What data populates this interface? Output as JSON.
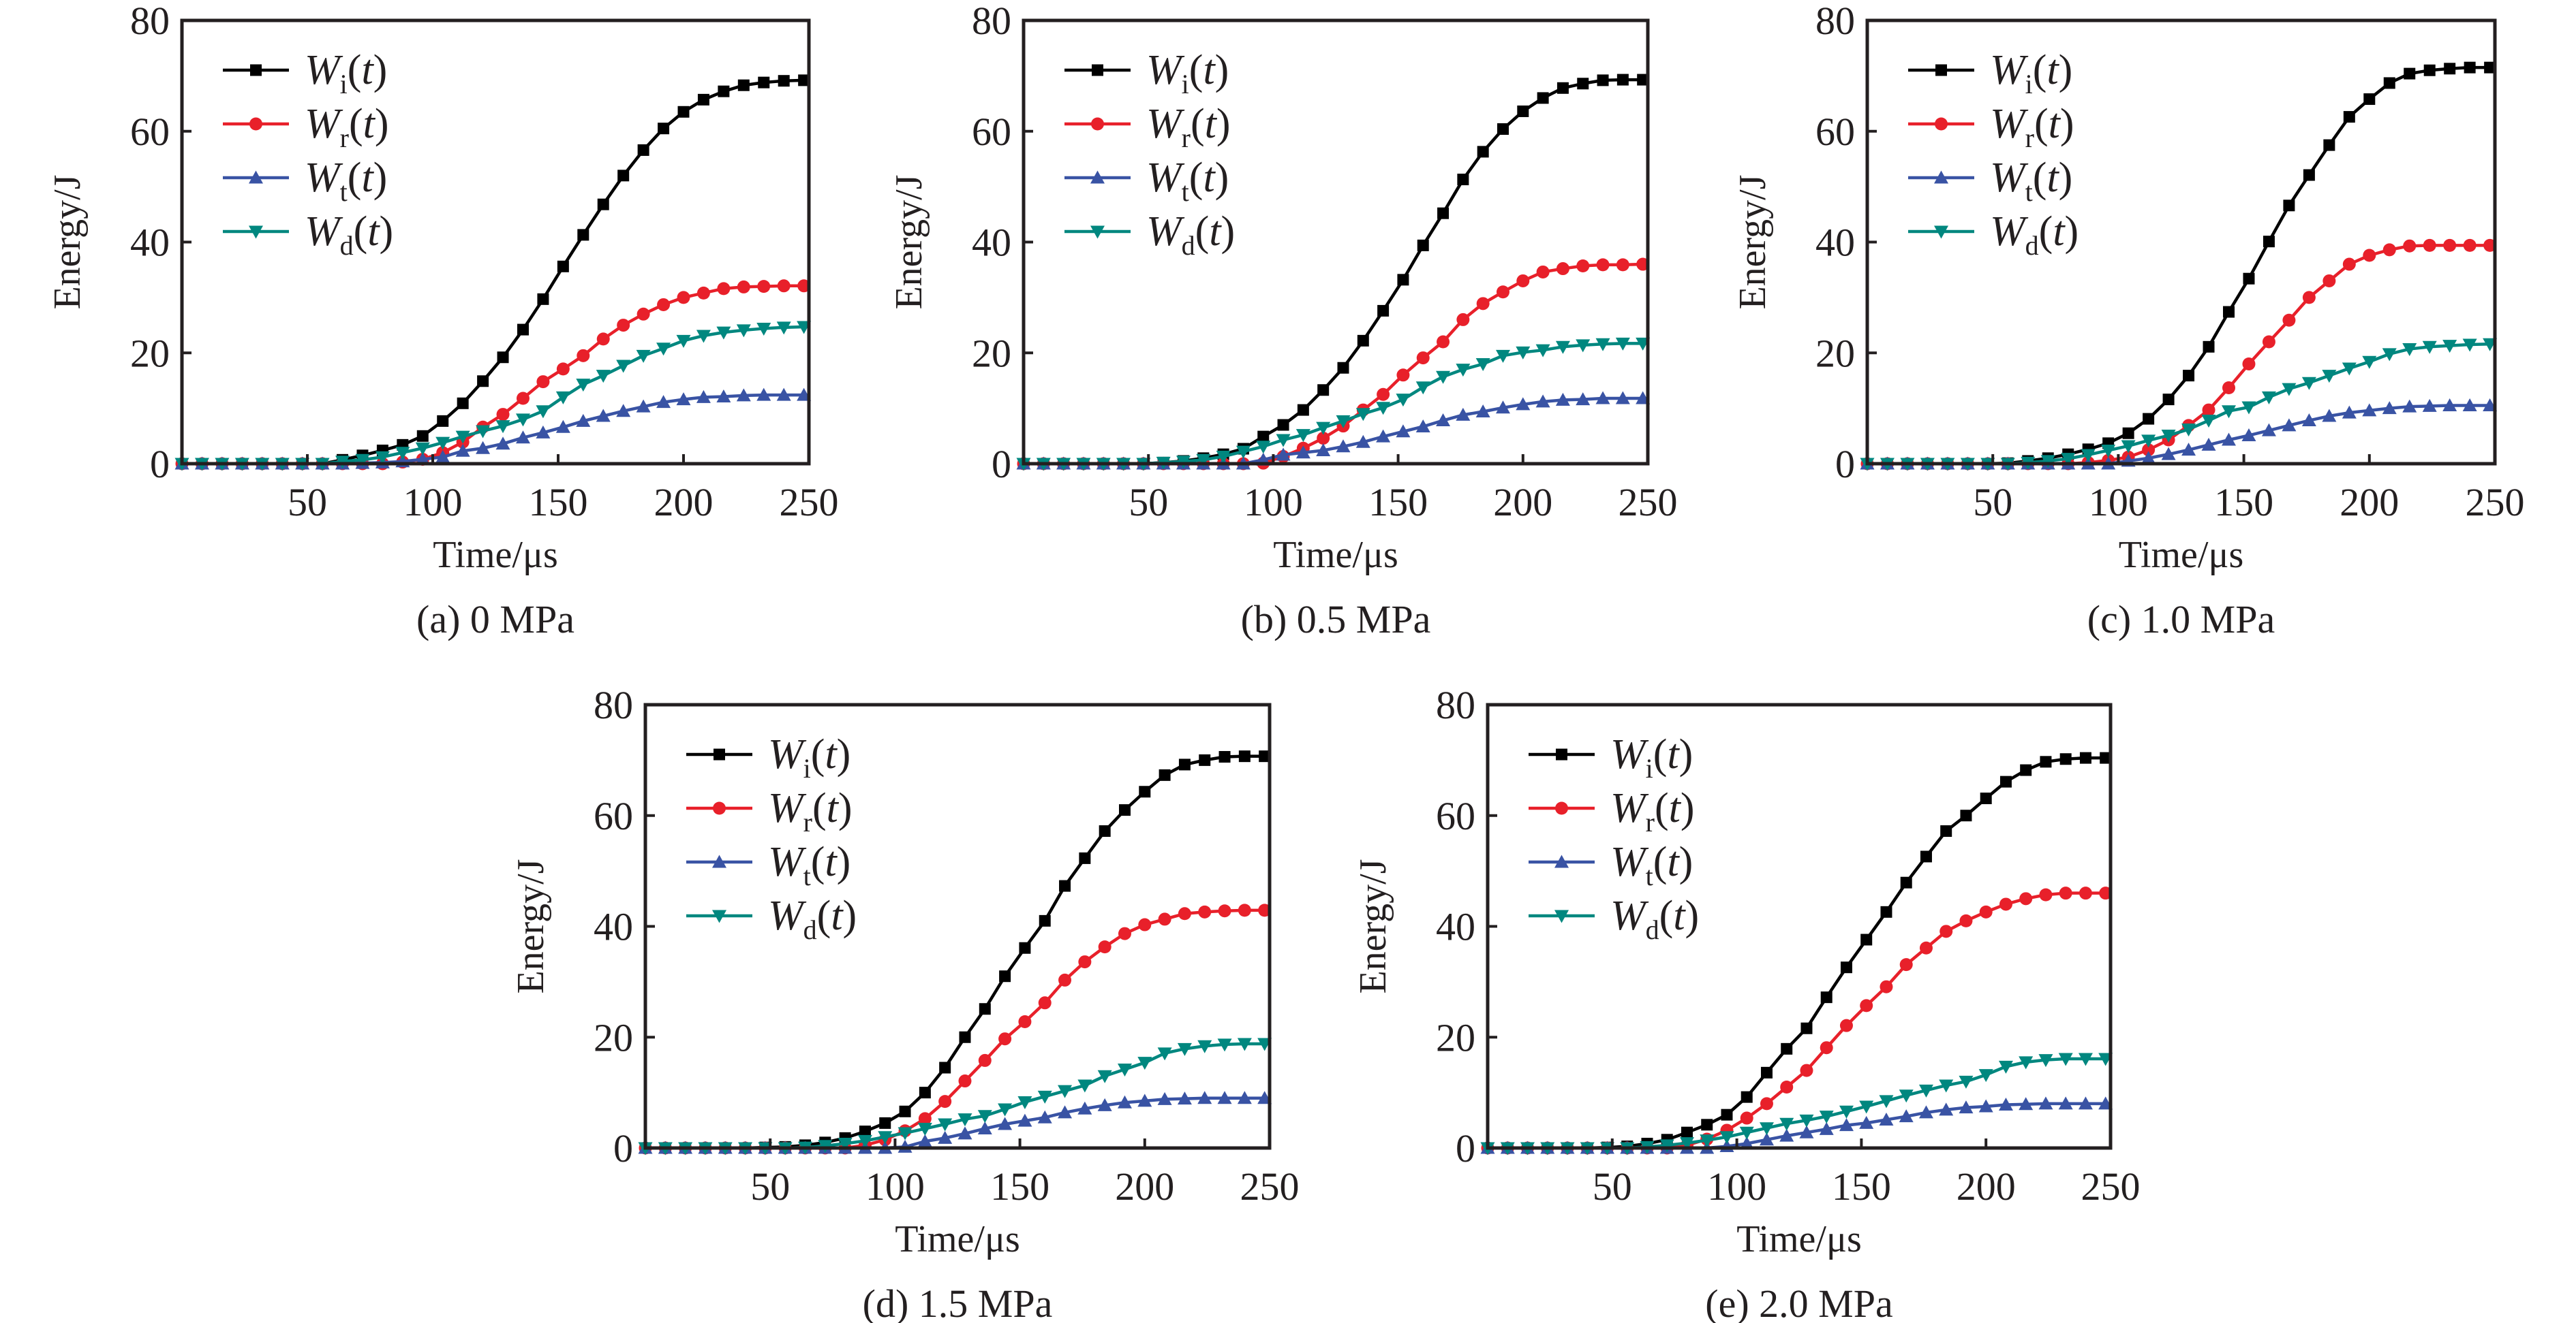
{
  "chart_data": [
    {
      "type": "line",
      "caption": "(a) 0 MPa",
      "xlabel": "Time/μs",
      "ylabel": "Energy/J",
      "xlim": [
        0,
        250
      ],
      "ylim": [
        0,
        80
      ],
      "xticks": [
        50,
        100,
        150,
        200,
        250
      ],
      "yticks": [
        0,
        20,
        40,
        60,
        80
      ],
      "grid": false,
      "legend": "top-left",
      "x": [
        0,
        8,
        16,
        24,
        32,
        40,
        48,
        56,
        64,
        72,
        80,
        88,
        96,
        104,
        112,
        120,
        128,
        136,
        144,
        152,
        160,
        168,
        176,
        184,
        192,
        200,
        208,
        216,
        224,
        232,
        240,
        248
      ],
      "series": [
        {
          "name": "Wi(t)",
          "values": [
            0,
            0,
            0,
            0,
            0,
            0,
            0,
            0,
            0.7,
            1.5,
            2.4,
            3.4,
            5.0,
            7.7,
            10.9,
            14.9,
            19.2,
            24.2,
            29.7,
            35.6,
            41.3,
            46.8,
            52.0,
            56.6,
            60.5,
            63.5,
            65.7,
            67.2,
            68.3,
            68.8,
            69.1,
            69.2
          ]
        },
        {
          "name": "Wr(t)",
          "values": [
            0,
            0,
            0,
            0,
            0,
            0,
            0,
            0,
            0,
            0,
            0,
            0.3,
            0.8,
            2.0,
            3.9,
            6.6,
            8.9,
            11.8,
            14.8,
            17.1,
            19.5,
            22.5,
            25.0,
            27.0,
            28.7,
            30.0,
            30.8,
            31.6,
            31.9,
            32.0,
            32.1,
            32.1
          ]
        },
        {
          "name": "Wt(t)",
          "values": [
            0,
            0,
            0,
            0,
            0,
            0,
            0,
            0,
            0,
            0.1,
            0.2,
            0.4,
            0.8,
            1.2,
            2.3,
            2.8,
            3.6,
            4.7,
            5.6,
            6.6,
            7.7,
            8.6,
            9.5,
            10.3,
            11.1,
            11.6,
            12.0,
            12.1,
            12.3,
            12.4,
            12.4,
            12.4
          ]
        },
        {
          "name": "Wd(t)",
          "values": [
            0,
            0,
            0,
            0,
            0,
            0,
            0,
            0,
            0.4,
            0.7,
            1.2,
            2.0,
            2.8,
            3.8,
            4.9,
            5.9,
            6.8,
            8.0,
            9.5,
            12.0,
            14.3,
            15.9,
            17.7,
            19.5,
            20.8,
            22.2,
            23.1,
            23.7,
            24.1,
            24.4,
            24.6,
            24.7
          ]
        }
      ]
    },
    {
      "type": "line",
      "caption": "(b) 0.5 MPa",
      "xlabel": "Time/μs",
      "ylabel": "Energy/J",
      "xlim": [
        0,
        250
      ],
      "ylim": [
        0,
        80
      ],
      "xticks": [
        50,
        100,
        150,
        200,
        250
      ],
      "yticks": [
        0,
        20,
        40,
        60,
        80
      ],
      "grid": false,
      "legend": "top-left",
      "x": [
        0,
        8,
        16,
        24,
        32,
        40,
        48,
        56,
        64,
        72,
        80,
        88,
        96,
        104,
        112,
        120,
        128,
        136,
        144,
        152,
        160,
        168,
        176,
        184,
        192,
        200,
        208,
        216,
        224,
        232,
        240,
        248
      ],
      "series": [
        {
          "name": "Wi(t)",
          "values": [
            0,
            0,
            0,
            0,
            0,
            0,
            0,
            0.2,
            0.5,
            1.0,
            1.7,
            2.7,
            4.9,
            7.0,
            9.7,
            13.3,
            17.3,
            22.2,
            27.6,
            33.2,
            39.4,
            45.2,
            51.3,
            56.3,
            60.4,
            63.6,
            66.0,
            67.8,
            68.6,
            69.2,
            69.3,
            69.3
          ]
        },
        {
          "name": "Wr(t)",
          "values": [
            0,
            0,
            0,
            0,
            0,
            0,
            0,
            0,
            0,
            0,
            0,
            0,
            0.1,
            1.3,
            2.8,
            4.6,
            6.8,
            9.7,
            12.5,
            16.0,
            19.1,
            22.0,
            26.0,
            28.9,
            31.0,
            33.0,
            34.6,
            35.2,
            35.7,
            35.9,
            35.9,
            36.0
          ]
        },
        {
          "name": "Wt(t)",
          "values": [
            0,
            0,
            0,
            0,
            0,
            0,
            0,
            0,
            0,
            0,
            0,
            0,
            0.7,
            1.6,
            2.0,
            2.4,
            3.1,
            3.9,
            4.9,
            5.8,
            6.7,
            7.8,
            8.8,
            9.4,
            10.1,
            10.7,
            11.2,
            11.5,
            11.6,
            11.8,
            11.8,
            11.8
          ]
        },
        {
          "name": "Wd(t)",
          "values": [
            0,
            0,
            0,
            0,
            0,
            0,
            0,
            0.2,
            0.4,
            0.7,
            1.3,
            2.2,
            3.1,
            4.3,
            5.2,
            6.5,
            7.7,
            9.0,
            10.1,
            11.6,
            13.8,
            15.7,
            17.0,
            18.0,
            19.5,
            20.1,
            20.5,
            21.1,
            21.4,
            21.6,
            21.7,
            21.7
          ]
        }
      ]
    },
    {
      "type": "line",
      "caption": "(c) 1.0 MPa",
      "xlabel": "Time/μs",
      "ylabel": "Energy/J",
      "xlim": [
        0,
        250
      ],
      "ylim": [
        0,
        80
      ],
      "xticks": [
        50,
        100,
        150,
        200,
        250
      ],
      "yticks": [
        0,
        20,
        40,
        60,
        80
      ],
      "grid": false,
      "legend": "top-left",
      "x": [
        0,
        8,
        16,
        24,
        32,
        40,
        48,
        56,
        64,
        72,
        80,
        88,
        96,
        104,
        112,
        120,
        128,
        136,
        144,
        152,
        160,
        168,
        176,
        184,
        192,
        200,
        208,
        216,
        224,
        232,
        240,
        248
      ],
      "series": [
        {
          "name": "Wi(t)",
          "values": [
            0,
            0,
            0,
            0,
            0,
            0,
            0,
            0.1,
            0.5,
            1.0,
            1.7,
            2.6,
            3.7,
            5.5,
            8.1,
            11.6,
            15.9,
            21.1,
            27.4,
            33.4,
            40.1,
            46.6,
            52.1,
            57.5,
            62.6,
            65.8,
            68.7,
            70.4,
            71.0,
            71.3,
            71.5,
            71.5
          ]
        },
        {
          "name": "Wr(t)",
          "values": [
            0,
            0,
            0,
            0,
            0,
            0,
            0,
            0,
            0,
            0,
            0,
            0.2,
            0.6,
            1.2,
            2.5,
            4.3,
            6.9,
            9.7,
            13.7,
            18.0,
            22.0,
            25.9,
            30.0,
            33.0,
            36.0,
            37.6,
            38.6,
            39.3,
            39.4,
            39.4,
            39.4,
            39.4
          ]
        },
        {
          "name": "Wt(t)",
          "values": [
            0,
            0,
            0,
            0,
            0,
            0,
            0,
            0,
            0,
            0,
            0,
            0,
            0,
            0.5,
            1.0,
            1.7,
            2.5,
            3.4,
            4.3,
            5.1,
            6.0,
            6.9,
            7.8,
            8.6,
            9.2,
            9.6,
            10.0,
            10.3,
            10.4,
            10.5,
            10.5,
            10.5
          ]
        },
        {
          "name": "Wd(t)",
          "values": [
            0,
            0,
            0,
            0,
            0,
            0,
            0,
            0,
            0.2,
            0.5,
            0.9,
            1.6,
            2.4,
            3.2,
            4.2,
            5.1,
            6.2,
            7.8,
            9.5,
            10.2,
            12.0,
            13.5,
            14.6,
            15.9,
            17.2,
            18.4,
            19.8,
            20.7,
            21.1,
            21.3,
            21.5,
            21.6
          ]
        }
      ]
    },
    {
      "type": "line",
      "caption": "(d) 1.5 MPa",
      "xlabel": "Time/μs",
      "ylabel": "Energy/J",
      "xlim": [
        0,
        250
      ],
      "ylim": [
        0,
        80
      ],
      "xticks": [
        50,
        100,
        150,
        200,
        250
      ],
      "yticks": [
        0,
        20,
        40,
        60,
        80
      ],
      "grid": false,
      "legend": "top-left",
      "x": [
        0,
        8,
        16,
        24,
        32,
        40,
        48,
        56,
        64,
        72,
        80,
        88,
        96,
        104,
        112,
        120,
        128,
        136,
        144,
        152,
        160,
        168,
        176,
        184,
        192,
        200,
        208,
        216,
        224,
        232,
        240,
        248
      ],
      "series": [
        {
          "name": "Wi(t)",
          "values": [
            0,
            0,
            0,
            0,
            0,
            0,
            0.1,
            0.2,
            0.5,
            1.0,
            1.8,
            3.0,
            4.5,
            6.6,
            10.0,
            14.5,
            20.0,
            25.1,
            31.0,
            36.1,
            41.0,
            47.3,
            52.3,
            57.2,
            61.0,
            64.3,
            67.3,
            69.2,
            70.0,
            70.6,
            70.7,
            70.7
          ]
        },
        {
          "name": "Wr(t)",
          "values": [
            0,
            0,
            0,
            0,
            0,
            0,
            0,
            0,
            0,
            0,
            0,
            0.5,
            1.5,
            3.1,
            5.3,
            8.4,
            12.1,
            15.8,
            19.7,
            22.8,
            26.2,
            30.3,
            33.6,
            36.3,
            38.7,
            40.3,
            41.3,
            42.3,
            42.6,
            42.8,
            42.9,
            42.9
          ]
        },
        {
          "name": "Wt(t)",
          "values": [
            0,
            0,
            0,
            0,
            0,
            0,
            0,
            0,
            0,
            0,
            0,
            0,
            0,
            0.2,
            1.2,
            1.8,
            2.6,
            3.5,
            4.3,
            4.9,
            5.5,
            6.4,
            7.1,
            7.7,
            8.2,
            8.5,
            8.8,
            8.9,
            9.0,
            9.0,
            9.0,
            9.0
          ]
        },
        {
          "name": "Wd(t)",
          "values": [
            0,
            0,
            0,
            0,
            0,
            0,
            0,
            0,
            0.1,
            0.4,
            0.8,
            1.3,
            2.0,
            2.7,
            3.5,
            4.3,
            5.2,
            5.8,
            7.0,
            8.3,
            9.3,
            10.3,
            11.3,
            13.0,
            14.2,
            15.4,
            17.1,
            17.9,
            18.4,
            18.7,
            18.8,
            18.8
          ]
        }
      ]
    },
    {
      "type": "line",
      "caption": "(e) 2.0 MPa",
      "xlabel": "Time/μs",
      "ylabel": "Energy/J",
      "xlim": [
        0,
        250
      ],
      "ylim": [
        0,
        80
      ],
      "xticks": [
        50,
        100,
        150,
        200,
        250
      ],
      "yticks": [
        0,
        20,
        40,
        60,
        80
      ],
      "grid": false,
      "legend": "top-left",
      "x": [
        0,
        8,
        16,
        24,
        32,
        40,
        48,
        56,
        64,
        72,
        80,
        88,
        96,
        104,
        112,
        120,
        128,
        136,
        144,
        152,
        160,
        168,
        176,
        184,
        192,
        200,
        208,
        216,
        224,
        232,
        240,
        248
      ],
      "series": [
        {
          "name": "Wi(t)",
          "values": [
            0,
            0,
            0,
            0,
            0,
            0,
            0.1,
            0.3,
            0.8,
            1.5,
            2.8,
            4.2,
            6.0,
            9.2,
            13.6,
            17.9,
            21.6,
            27.2,
            32.6,
            37.6,
            42.6,
            47.9,
            52.6,
            57.2,
            60.0,
            63.1,
            66.1,
            68.2,
            69.7,
            70.2,
            70.4,
            70.4
          ]
        },
        {
          "name": "Wr(t)",
          "values": [
            0,
            0,
            0,
            0,
            0,
            0,
            0,
            0,
            0,
            0,
            0.5,
            1.6,
            3.2,
            5.4,
            8.0,
            11.0,
            14.0,
            18.1,
            22.1,
            25.7,
            29.1,
            33.1,
            36.1,
            39.1,
            41.0,
            42.6,
            44.0,
            45.0,
            45.7,
            46.0,
            46.0,
            46.0
          ]
        },
        {
          "name": "Wt(t)",
          "values": [
            0,
            0,
            0,
            0,
            0,
            0,
            0,
            0,
            0,
            0,
            0,
            0,
            0.3,
            0.8,
            1.5,
            2.2,
            2.8,
            3.4,
            4.1,
            4.5,
            5.1,
            5.7,
            6.4,
            6.9,
            7.3,
            7.5,
            7.8,
            7.9,
            8.0,
            8.0,
            8.0,
            8.0
          ]
        },
        {
          "name": "Wd(t)",
          "values": [
            0,
            0,
            0,
            0,
            0,
            0,
            0,
            0,
            0.2,
            0.5,
            0.9,
            1.4,
            2.0,
            2.8,
            3.6,
            4.4,
            5.0,
            5.7,
            6.6,
            7.5,
            8.5,
            9.5,
            10.4,
            11.3,
            12.0,
            13.2,
            14.7,
            15.5,
            15.9,
            16.1,
            16.1,
            16.1
          ]
        }
      ]
    }
  ],
  "legend_labels": [
    {
      "main": "W",
      "sub": "i",
      "arg": "t"
    },
    {
      "main": "W",
      "sub": "r",
      "arg": "t"
    },
    {
      "main": "W",
      "sub": "t",
      "arg": "t"
    },
    {
      "main": "W",
      "sub": "d",
      "arg": "t"
    }
  ],
  "series_style": [
    {
      "color": "#000000",
      "marker": "square"
    },
    {
      "color": "#e8202a",
      "marker": "circle"
    },
    {
      "color": "#3953a4",
      "marker": "triangle-up"
    },
    {
      "color": "#00877f",
      "marker": "triangle-down"
    }
  ]
}
